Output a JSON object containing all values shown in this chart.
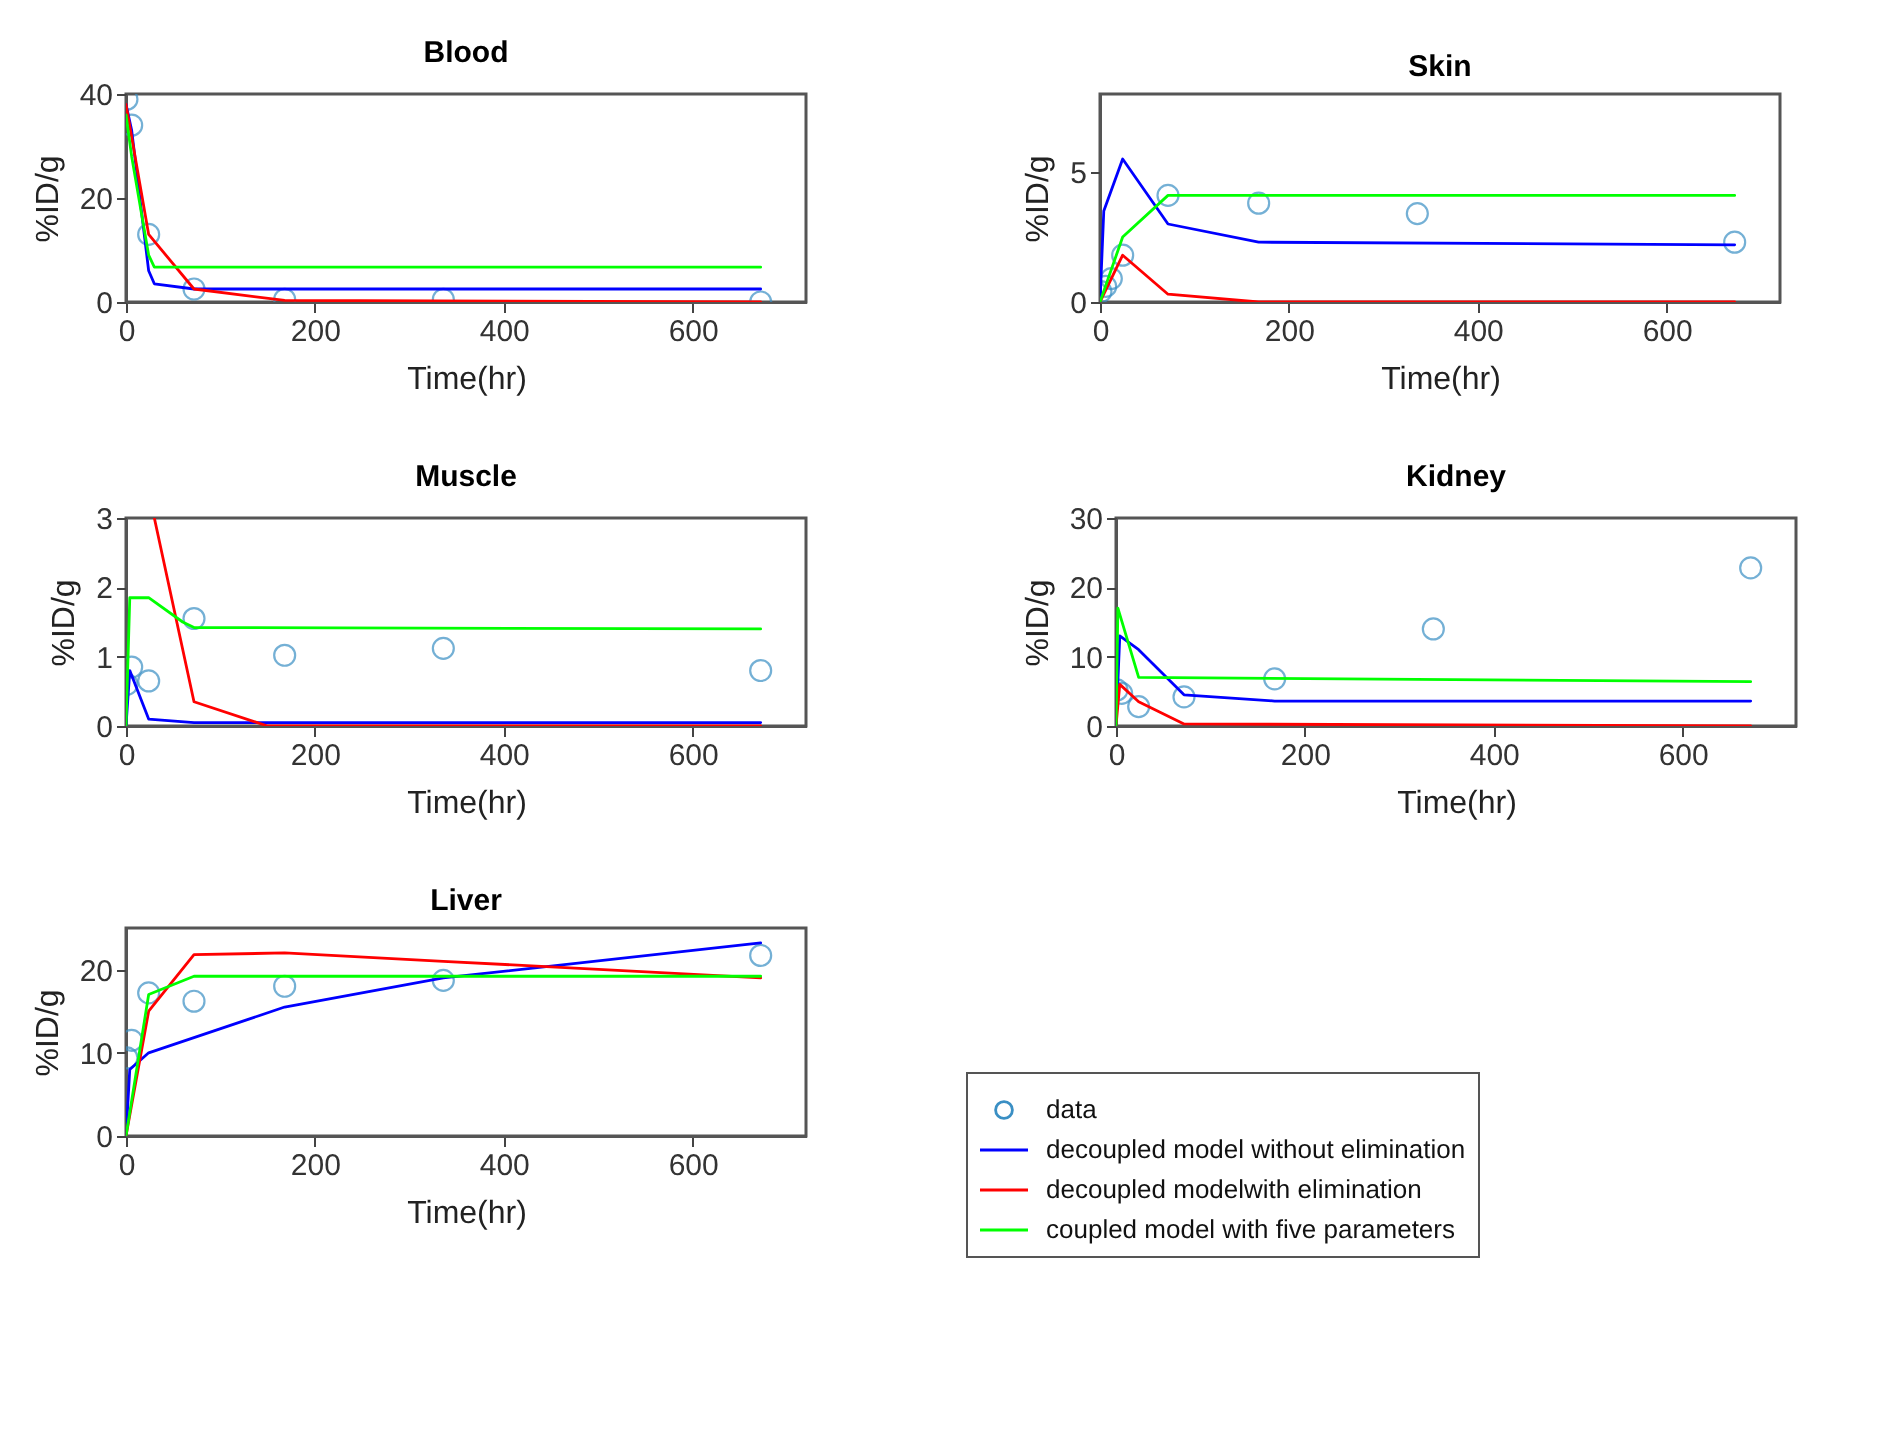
{
  "chart_data": [
    {
      "type": "line",
      "title": "Blood",
      "xlabel": "Time(hr)",
      "ylabel": "%ID/g",
      "xlim": [
        0,
        720
      ],
      "xticks": [
        0,
        200,
        400,
        600
      ],
      "ylim": [
        0,
        40
      ],
      "yticks": [
        0,
        20,
        40
      ],
      "series": [
        {
          "type": "scatter",
          "marker": "circle",
          "color": "#3a8fc4",
          "x": [
            1,
            6,
            24,
            72,
            168,
            336,
            672
          ],
          "values": [
            39,
            34,
            13,
            2.5,
            0.5,
            0.5,
            0
          ]
        },
        {
          "color": "#0000ff",
          "x": [
            0,
            6,
            24,
            30,
            72,
            672
          ],
          "values": [
            38,
            33,
            6,
            3.5,
            2.5,
            2.5
          ]
        },
        {
          "color": "#ff0000",
          "x": [
            0,
            24,
            72,
            168,
            672
          ],
          "values": [
            38,
            13,
            2.5,
            0.3,
            0
          ]
        },
        {
          "color": "#00ff00",
          "x": [
            0,
            6,
            24,
            30,
            672
          ],
          "values": [
            36,
            28,
            9,
            6.7,
            6.7
          ]
        }
      ]
    },
    {
      "type": "line",
      "title": "Skin",
      "xlabel": "Time(hr)",
      "ylabel": "%ID/g",
      "xlim": [
        0,
        720
      ],
      "xticks": [
        0,
        200,
        400,
        600
      ],
      "ylim": [
        0,
        8
      ],
      "yticks": [
        0,
        5
      ],
      "series": [
        {
          "type": "scatter",
          "marker": "circle",
          "color": "#3a8fc4",
          "x": [
            1,
            6,
            12,
            24,
            72,
            168,
            336,
            672
          ],
          "values": [
            0.4,
            0.6,
            0.9,
            1.8,
            4.1,
            3.8,
            3.4,
            2.3
          ]
        },
        {
          "color": "#0000ff",
          "x": [
            0,
            4,
            24,
            72,
            168,
            672
          ],
          "values": [
            0,
            3.5,
            5.5,
            3,
            2.3,
            2.2
          ]
        },
        {
          "color": "#ff0000",
          "x": [
            0,
            24,
            72,
            168,
            672
          ],
          "values": [
            0,
            1.8,
            0.3,
            0,
            0
          ]
        },
        {
          "color": "#00ff00",
          "x": [
            0,
            24,
            72,
            672
          ],
          "values": [
            0,
            2.5,
            4.1,
            4.1
          ]
        }
      ]
    },
    {
      "type": "line",
      "title": "Muscle",
      "xlabel": "Time(hr)",
      "ylabel": "%ID/g",
      "xlim": [
        0,
        720
      ],
      "xticks": [
        0,
        200,
        400,
        600
      ],
      "ylim": [
        0,
        3
      ],
      "yticks": [
        0,
        1,
        2,
        3
      ],
      "series": [
        {
          "type": "scatter",
          "marker": "circle",
          "color": "#3a8fc4",
          "x": [
            1,
            6,
            24,
            72,
            168,
            336,
            672
          ],
          "values": [
            0.6,
            0.85,
            0.65,
            1.55,
            1.02,
            1.12,
            0.8
          ]
        },
        {
          "color": "#0000ff",
          "x": [
            0,
            4,
            24,
            72,
            672
          ],
          "values": [
            0,
            0.8,
            0.1,
            0.05,
            0.05
          ]
        },
        {
          "color": "#ff0000",
          "x": [
            30,
            72,
            150,
            672
          ],
          "values": [
            3,
            0.35,
            0,
            0
          ]
        },
        {
          "color": "#00ff00",
          "x": [
            0,
            4,
            24,
            60,
            72,
            672
          ],
          "values": [
            0,
            1.85,
            1.85,
            1.5,
            1.42,
            1.4
          ]
        }
      ]
    },
    {
      "type": "line",
      "title": "Kidney",
      "xlabel": "Time(hr)",
      "ylabel": "%ID/g",
      "xlim": [
        0,
        720
      ],
      "xticks": [
        0,
        200,
        400,
        600
      ],
      "ylim": [
        0,
        30
      ],
      "yticks": [
        0,
        10,
        20,
        30
      ],
      "series": [
        {
          "type": "scatter",
          "marker": "circle",
          "color": "#3a8fc4",
          "x": [
            1,
            6,
            24,
            72,
            168,
            336,
            672
          ],
          "values": [
            5.2,
            4.7,
            2.8,
            4.2,
            6.8,
            14,
            22.8
          ]
        },
        {
          "color": "#0000ff",
          "x": [
            0,
            4,
            24,
            72,
            168,
            672
          ],
          "values": [
            0,
            13,
            11,
            4.5,
            3.6,
            3.6
          ]
        },
        {
          "color": "#ff0000",
          "x": [
            0,
            4,
            24,
            72,
            672
          ],
          "values": [
            0,
            6,
            3.5,
            0.3,
            0
          ]
        },
        {
          "color": "#00ff00",
          "x": [
            0,
            2,
            24,
            672
          ],
          "values": [
            0,
            17,
            7,
            6.4
          ]
        }
      ]
    },
    {
      "type": "line",
      "title": "Liver",
      "xlabel": "Time(hr)",
      "ylabel": "%ID/g",
      "xlim": [
        0,
        720
      ],
      "xticks": [
        0,
        200,
        400,
        600
      ],
      "ylim": [
        0,
        25
      ],
      "yticks": [
        0,
        10,
        20
      ],
      "legend": "bottom right",
      "series": [
        {
          "type": "scatter",
          "marker": "circle",
          "name": "data",
          "color": "#3a8fc4",
          "x": [
            1,
            6,
            24,
            72,
            168,
            336,
            672
          ],
          "values": [
            9.4,
            11.5,
            17.2,
            16.2,
            18,
            18.7,
            21.7
          ]
        },
        {
          "name": "decoupled model without elimination",
          "color": "#0000ff",
          "x": [
            0,
            4,
            24,
            168,
            336,
            672
          ],
          "values": [
            0,
            8,
            10,
            15.5,
            19,
            23.2
          ]
        },
        {
          "name": "decoupled modelwith elimination",
          "color": "#ff0000",
          "x": [
            0,
            24,
            72,
            168,
            336,
            672
          ],
          "values": [
            0,
            15,
            21.8,
            22,
            21,
            19
          ]
        },
        {
          "name": "coupled model with five parameters",
          "color": "#00ff00",
          "x": [
            0,
            24,
            72,
            672
          ],
          "values": [
            0,
            17,
            19.2,
            19.2
          ]
        }
      ]
    }
  ]
}
